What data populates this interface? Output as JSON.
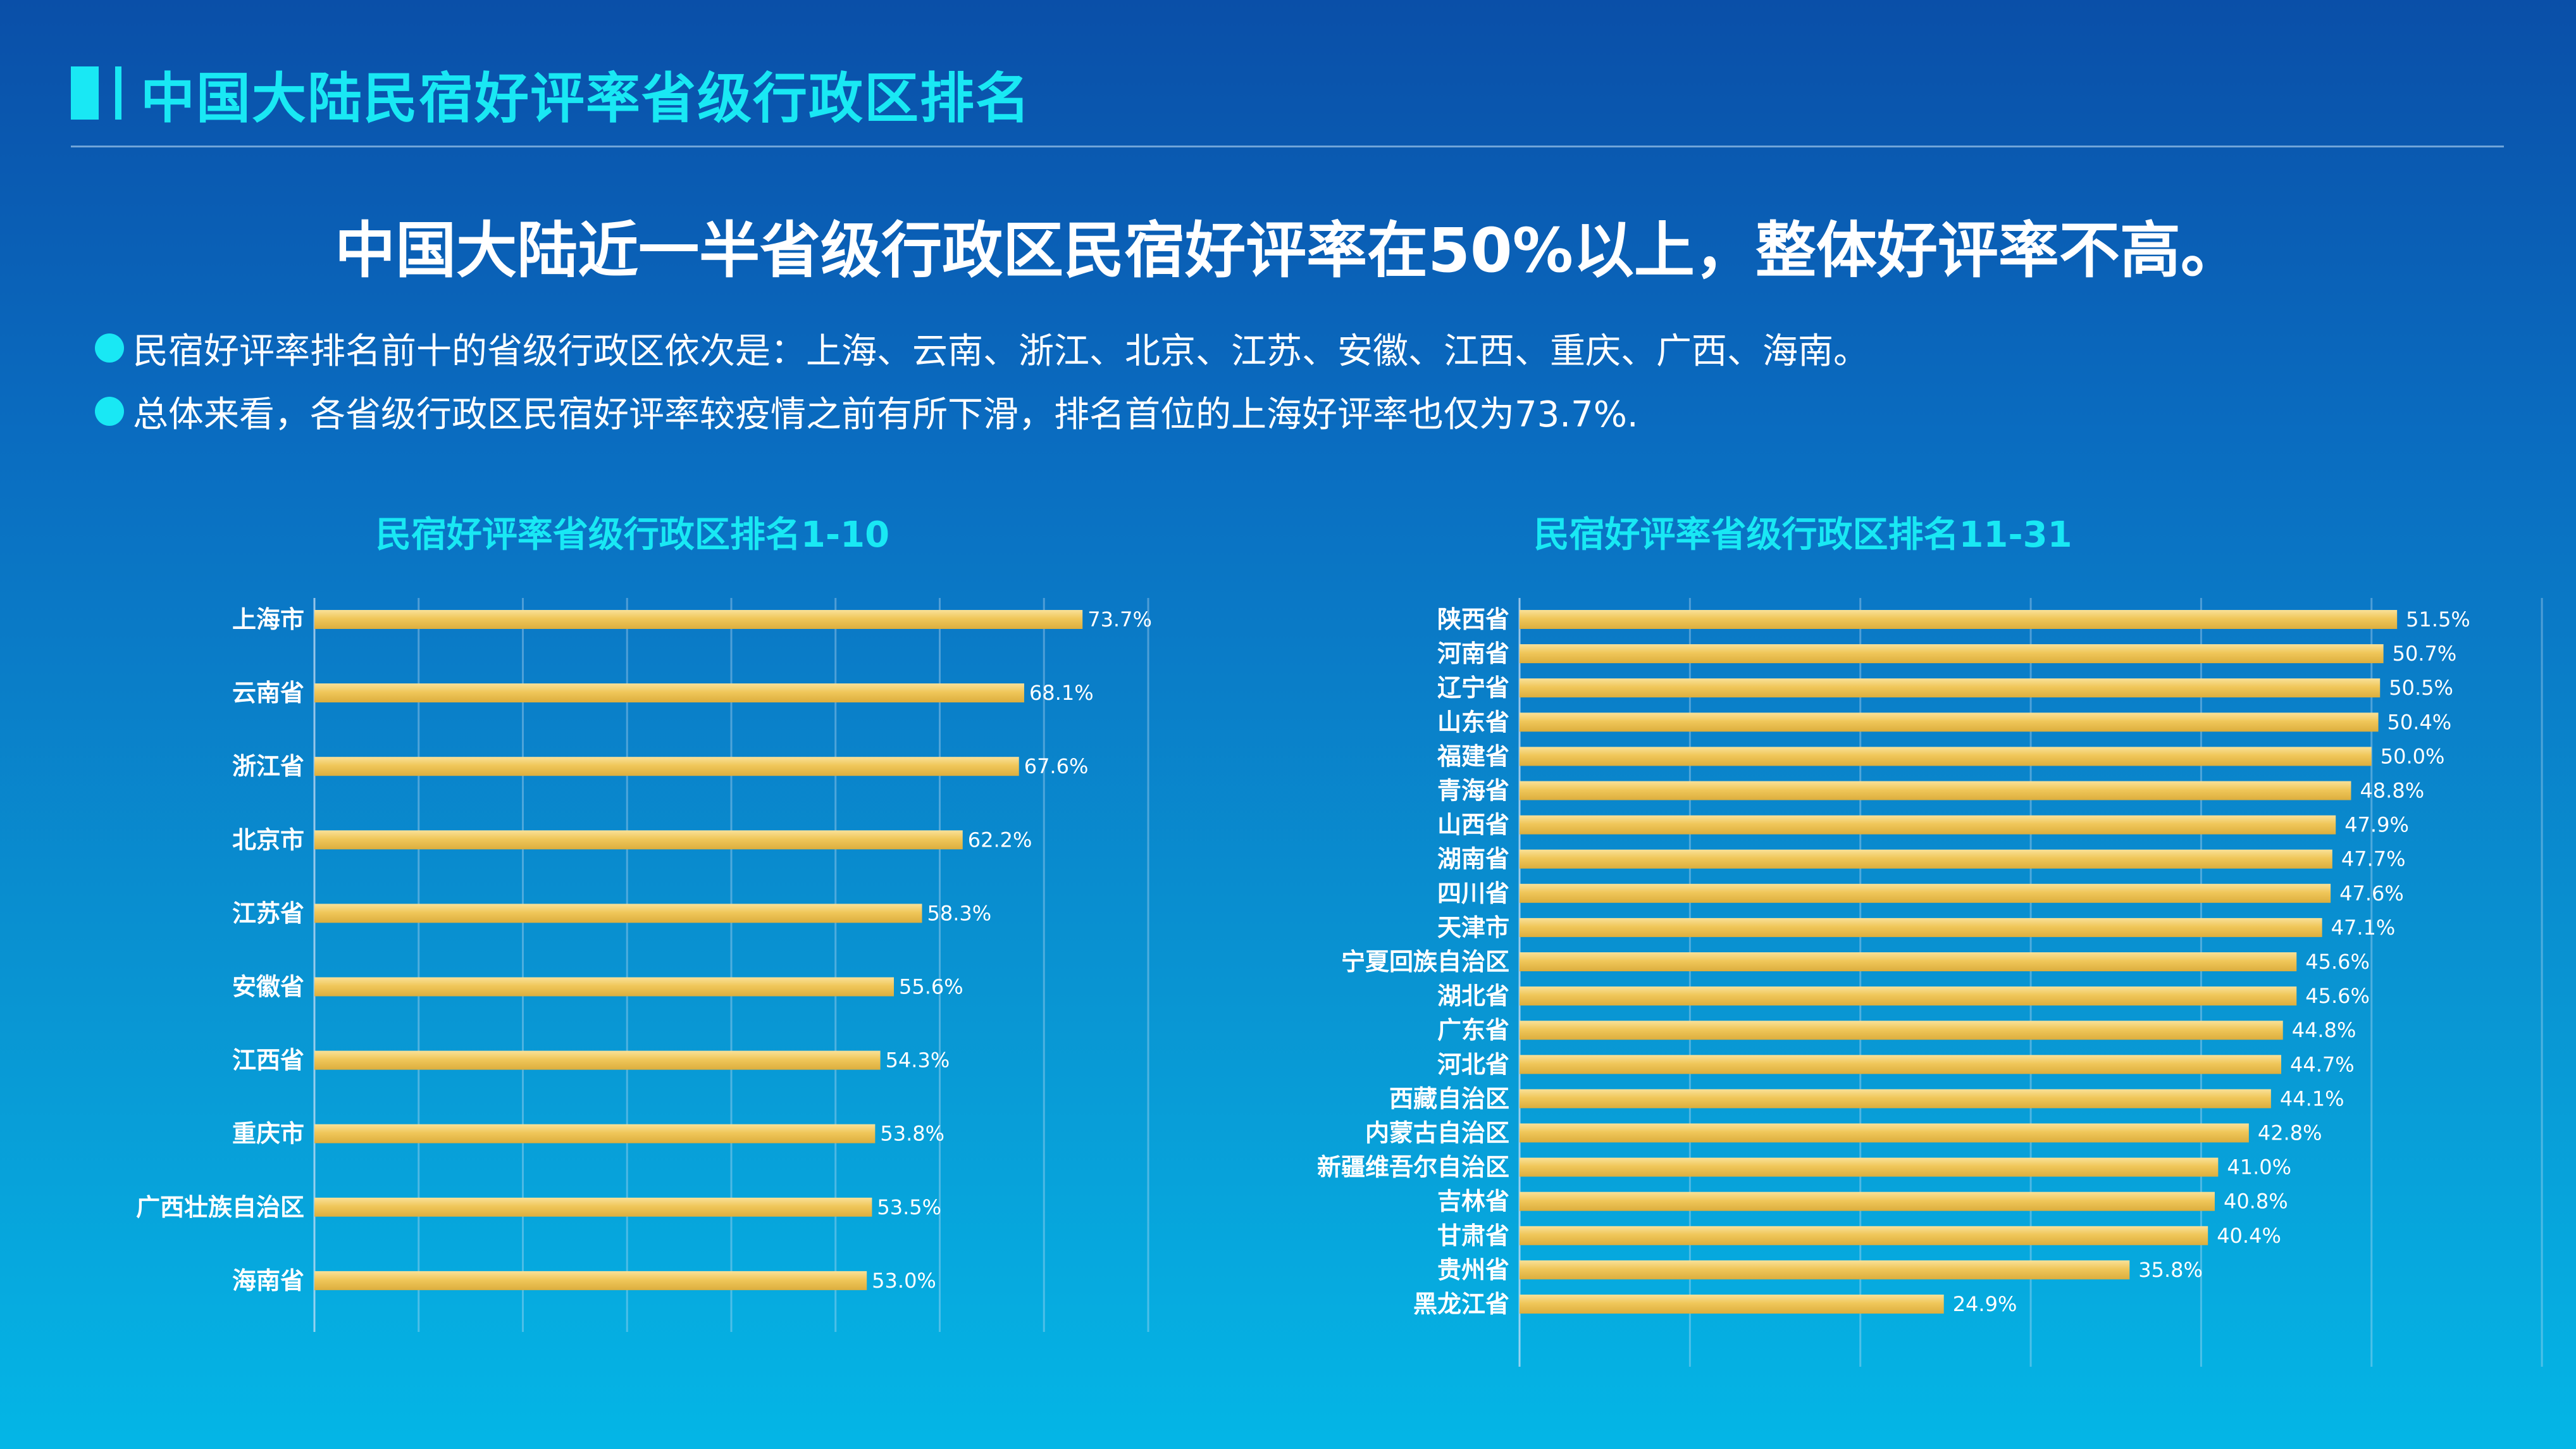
{
  "header": {
    "title": "中国大陆民宿好评率省级行政区排名"
  },
  "headline": "中国大陆近一半省级行政区民宿好评率在50%以上，整体好评率不高。",
  "bullets": [
    "民宿好评率排名前十的省级行政区依次是：上海、云南、浙江、北京、江苏、安徽、江西、重庆、广西、海南。",
    "总体来看，各省级行政区民宿好评率较疫情之前有所下滑，排名首位的上海好评率也仅为73.7%."
  ],
  "colors": {
    "accent": "#19e8f4",
    "bar": "#f0c75a",
    "bar_light": "#f7dc8c"
  },
  "chart_data": [
    {
      "type": "bar",
      "orientation": "horizontal",
      "title": "民宿好评率省级行政区排名1-10",
      "categories": [
        "上海市",
        "云南省",
        "浙江省",
        "北京市",
        "江苏省",
        "安徽省",
        "江西省",
        "重庆市",
        "广西壮族自治区",
        "海南省"
      ],
      "values": [
        73.7,
        68.1,
        67.6,
        62.2,
        58.3,
        55.6,
        54.3,
        53.8,
        53.5,
        53.0
      ],
      "labels": [
        "73.7%",
        "68.1%",
        "67.6%",
        "62.2%",
        "58.3%",
        "55.6%",
        "54.3%",
        "53.8%",
        "53.5%",
        "53.0%"
      ],
      "xlim": [
        0,
        80
      ],
      "grid": true
    },
    {
      "type": "bar",
      "orientation": "horizontal",
      "title": "民宿好评率省级行政区排名11-31",
      "categories": [
        "陕西省",
        "河南省",
        "辽宁省",
        "山东省",
        "福建省",
        "青海省",
        "山西省",
        "湖南省",
        "四川省",
        "天津市",
        "宁夏回族自治区",
        "湖北省",
        "广东省",
        "河北省",
        "西藏自治区",
        "内蒙古自治区",
        "新疆维吾尔自治区",
        "吉林省",
        "甘肃省",
        "贵州省",
        "黑龙江省"
      ],
      "values": [
        51.5,
        50.7,
        50.5,
        50.4,
        50.0,
        48.8,
        47.9,
        47.7,
        47.6,
        47.1,
        45.6,
        45.6,
        44.8,
        44.7,
        44.1,
        42.8,
        41.0,
        40.8,
        40.4,
        35.8,
        24.9
      ],
      "labels": [
        "51.5%",
        "50.7%",
        "50.5%",
        "50.4%",
        "50.0%",
        "48.8%",
        "47.9%",
        "47.7%",
        "47.6%",
        "47.1%",
        "45.6%",
        "45.6%",
        "44.8%",
        "44.7%",
        "44.1%",
        "42.8%",
        "41.0%",
        "40.8%",
        "40.4%",
        "35.8%",
        "24.9%"
      ],
      "xlim": [
        0,
        62
      ],
      "grid": true
    }
  ]
}
